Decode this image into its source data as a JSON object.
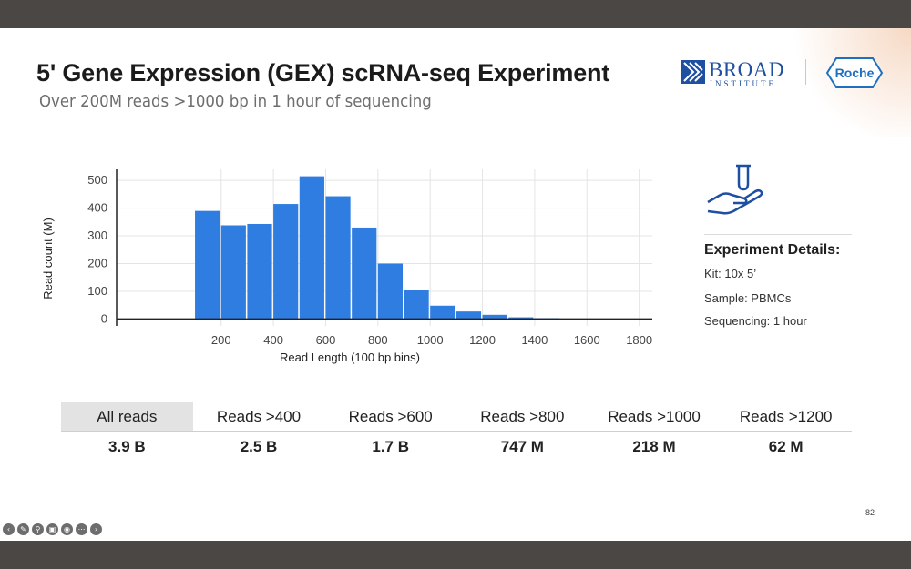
{
  "slide": {
    "title": "5' Gene Expression (GEX) scRNA-seq Experiment",
    "subtitle": "Over 200M reads >1000 bp in 1 hour of sequencing",
    "page_number": "82"
  },
  "logos": {
    "broad_name": "BROAD",
    "broad_sub": "INSTITUTE",
    "roche": "Roche"
  },
  "chart_data": {
    "type": "bar",
    "xlabel": "Read Length (100 bp bins)",
    "ylabel": "Read count (M)",
    "xlim": [
      -200,
      1850
    ],
    "ylim": [
      -25,
      540
    ],
    "xticks": [
      200,
      400,
      600,
      800,
      1000,
      1200,
      1400,
      1600,
      1800
    ],
    "yticks": [
      0,
      100,
      200,
      300,
      400,
      500
    ],
    "bin_width": 100,
    "bins": [
      150,
      250,
      350,
      450,
      550,
      650,
      750,
      850,
      950,
      1050,
      1150,
      1250,
      1350,
      1450,
      1550,
      1650,
      1750
    ],
    "values": [
      390,
      338,
      343,
      415,
      515,
      443,
      330,
      200,
      105,
      48,
      27,
      15,
      6,
      3,
      1,
      0.5,
      0.3
    ],
    "bar_color": "#2f7de1",
    "grid": true
  },
  "details": {
    "heading": "Experiment Details:",
    "kit": "Kit: 10x 5’",
    "sample": "Sample: PBMCs",
    "sequencing": "Sequencing: 1 hour",
    "icon": "hand-holding-test-tube-icon",
    "icon_color": "#1f4fa0"
  },
  "stats": {
    "headers": [
      "All reads",
      "Reads >400",
      "Reads >600",
      "Reads >800",
      "Reads >1000",
      "Reads >1200"
    ],
    "values": [
      "3.9 B",
      "2.5 B",
      "1.7 B",
      "747 M",
      "218 M",
      "62 M"
    ]
  },
  "toolbar": {
    "icons": [
      "back-icon",
      "pen-icon",
      "zoom-icon",
      "captions-icon",
      "camera-icon",
      "more-icon",
      "forward-icon"
    ]
  }
}
